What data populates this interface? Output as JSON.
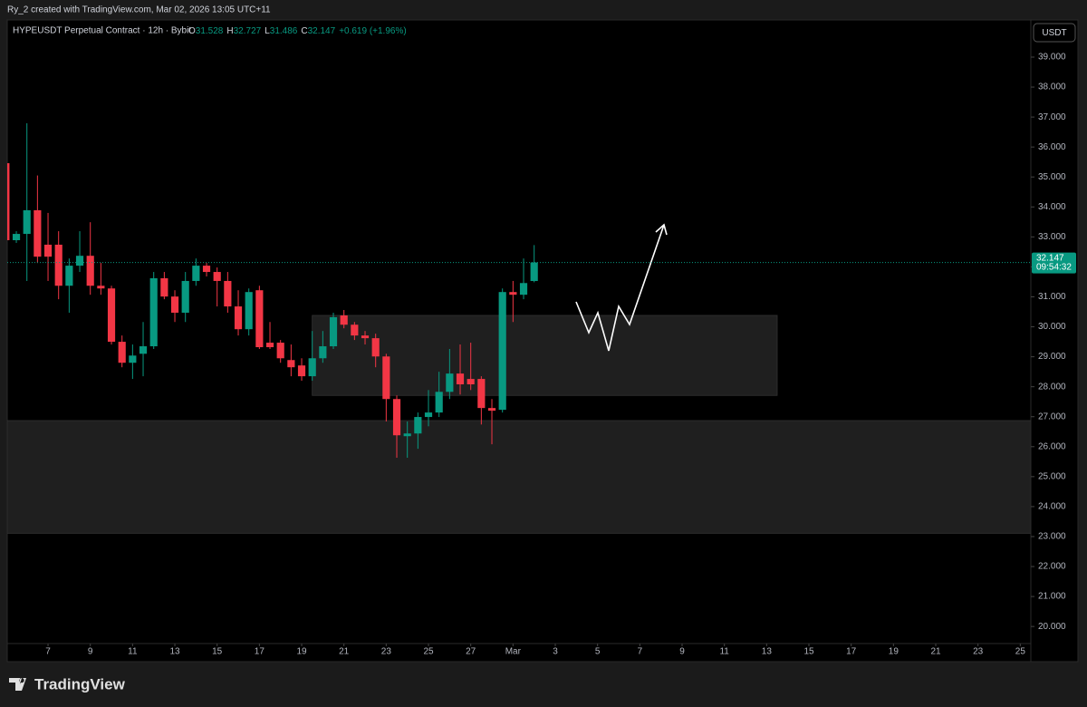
{
  "watermark": "Ry_2 created with TradingView.com, Mar 02, 2026 13:05 UTC+11",
  "brand": "TradingView",
  "chart_data": {
    "type": "candlestick",
    "title": "HYPEUSDT Perpetual Contract · 12h · Bybit",
    "ohlc_labels": [
      "O",
      "H",
      "L",
      "C"
    ],
    "change": "+0.619 (+1.96%)",
    "currency": "USDT",
    "countdown": "09:54:32",
    "up_color": "#089981",
    "down_color": "#f23645",
    "x": [
      5,
      5.5,
      6,
      6.5,
      7,
      7.5,
      8,
      8.5,
      9,
      9.5,
      10,
      10.5,
      11,
      11.5,
      12,
      12.5,
      13,
      13.5,
      14,
      14.5,
      15,
      15.5,
      16,
      16.5,
      17,
      17.5,
      18,
      18.5,
      19,
      19.5,
      20,
      20.5,
      21,
      21.5,
      22,
      22.5,
      23,
      23.5,
      24,
      24.5,
      25,
      25.5,
      26,
      26.5,
      27,
      27.5,
      28,
      28.5,
      29,
      29.5,
      30
    ],
    "open": [
      35.46,
      32.89,
      33.1,
      33.89,
      32.74,
      32.74,
      31.37,
      32.04,
      32.37,
      31.37,
      31.28,
      29.5,
      28.8,
      29.1,
      29.35,
      31.62,
      31.01,
      30.47,
      31.53,
      32.04,
      31.83,
      31.53,
      30.68,
      29.92,
      31.22,
      29.47,
      29.47,
      28.89,
      28.71,
      28.35,
      28.95,
      29.35,
      30.38,
      30.07,
      29.71,
      29.62,
      29.01,
      27.59,
      26.35,
      26.44,
      26.99,
      27.14,
      27.83,
      28.44,
      28.26,
      28.26,
      27.29,
      27.23,
      31.16,
      31.07,
      31.528
    ],
    "high": [
      35.55,
      33.19,
      36.79,
      35.05,
      33.8,
      33.19,
      32.28,
      33.19,
      33.49,
      32.13,
      31.37,
      29.71,
      29.41,
      30.16,
      31.83,
      31.83,
      31.22,
      31.83,
      32.28,
      32.13,
      31.98,
      31.83,
      31.22,
      31.28,
      31.37,
      30.16,
      29.56,
      29.41,
      28.95,
      29.86,
      29.86,
      30.47,
      30.56,
      30.16,
      29.86,
      29.77,
      29.1,
      27.71,
      26.84,
      27.14,
      27.89,
      28.5,
      29.26,
      29.41,
      29.47,
      28.35,
      27.59,
      31.28,
      31.53,
      32.28,
      32.727
    ],
    "low": [
      32.8,
      32.8,
      31.53,
      32.13,
      31.53,
      30.92,
      30.47,
      31.83,
      31.07,
      31.07,
      29.41,
      28.65,
      28.26,
      28.35,
      29.26,
      30.92,
      30.16,
      30.16,
      31.37,
      31.68,
      30.68,
      30.47,
      29.71,
      29.71,
      29.26,
      29.26,
      28.8,
      28.35,
      28.2,
      28.2,
      28.8,
      29.26,
      29.95,
      29.56,
      29.41,
      28.65,
      26.84,
      25.63,
      25.63,
      25.93,
      26.68,
      26.99,
      27.59,
      27.74,
      27.89,
      26.74,
      26.08,
      27.14,
      30.16,
      30.92,
      31.486
    ],
    "close": [
      32.89,
      33.1,
      33.89,
      32.34,
      32.34,
      31.37,
      32.04,
      32.37,
      31.37,
      31.28,
      29.5,
      28.8,
      29.04,
      29.35,
      31.62,
      31.01,
      30.47,
      31.53,
      32.04,
      31.83,
      31.53,
      30.68,
      29.92,
      31.16,
      29.32,
      29.32,
      28.95,
      28.65,
      28.35,
      28.95,
      29.35,
      30.32,
      30.07,
      29.71,
      29.62,
      29.01,
      27.59,
      26.38,
      26.44,
      26.99,
      27.14,
      27.83,
      28.44,
      28.08,
      28.08,
      27.29,
      27.2,
      31.16,
      31.07,
      31.46,
      32.147
    ],
    "zones": [
      {
        "x": [
          19.5,
          41.5
        ],
        "y": [
          27.71,
          30.38
        ]
      },
      {
        "x": [
          5.07,
          53.5
        ],
        "y": [
          23.11,
          26.87
        ]
      }
    ],
    "xlim": [
      5.07,
      53.5
    ],
    "ylim": [
      19.43,
      40.24
    ],
    "xticks": [
      7,
      9,
      11,
      13,
      15,
      17,
      19,
      21,
      23,
      25,
      27,
      {
        "value": 29,
        "label": "Mar"
      },
      {
        "value": 31,
        "label": "3"
      },
      {
        "value": 33,
        "label": "5"
      },
      {
        "value": 35,
        "label": "7"
      },
      {
        "value": 37,
        "label": "9"
      },
      {
        "value": 39,
        "label": "11"
      },
      {
        "value": 41,
        "label": "13"
      },
      {
        "value": 43,
        "label": "15"
      },
      {
        "value": 45,
        "label": "17"
      },
      {
        "value": 47,
        "label": "19"
      },
      {
        "value": 49,
        "label": "21"
      },
      {
        "value": 51,
        "label": "23"
      },
      {
        "value": 53,
        "label": "25"
      }
    ],
    "yticks": [
      {
        "value": 20,
        "label": "20.000"
      },
      {
        "value": 21,
        "label": "21.000"
      },
      {
        "value": 22,
        "label": "22.000"
      },
      {
        "value": 23,
        "label": "23.000"
      },
      {
        "value": 24,
        "label": "24.000"
      },
      {
        "value": 25,
        "label": "25.000"
      },
      {
        "value": 26,
        "label": "26.000"
      },
      {
        "value": 27,
        "label": "27.000"
      },
      {
        "value": 28,
        "label": "28.000"
      },
      {
        "value": 29,
        "label": "29.000"
      },
      {
        "value": 30,
        "label": "30.000"
      },
      {
        "value": 31,
        "label": "31.000"
      },
      {
        "value": 32,
        "label": "32.000"
      },
      {
        "value": 33,
        "label": "33.000"
      },
      {
        "value": 34,
        "label": "34.000"
      },
      {
        "value": 35,
        "label": "35.000"
      },
      {
        "value": 36,
        "label": "36.000"
      },
      {
        "value": 37,
        "label": "37.000"
      },
      {
        "value": 38,
        "label": "38.000"
      },
      {
        "value": 39,
        "label": "39.000"
      }
    ],
    "grid": false
  }
}
